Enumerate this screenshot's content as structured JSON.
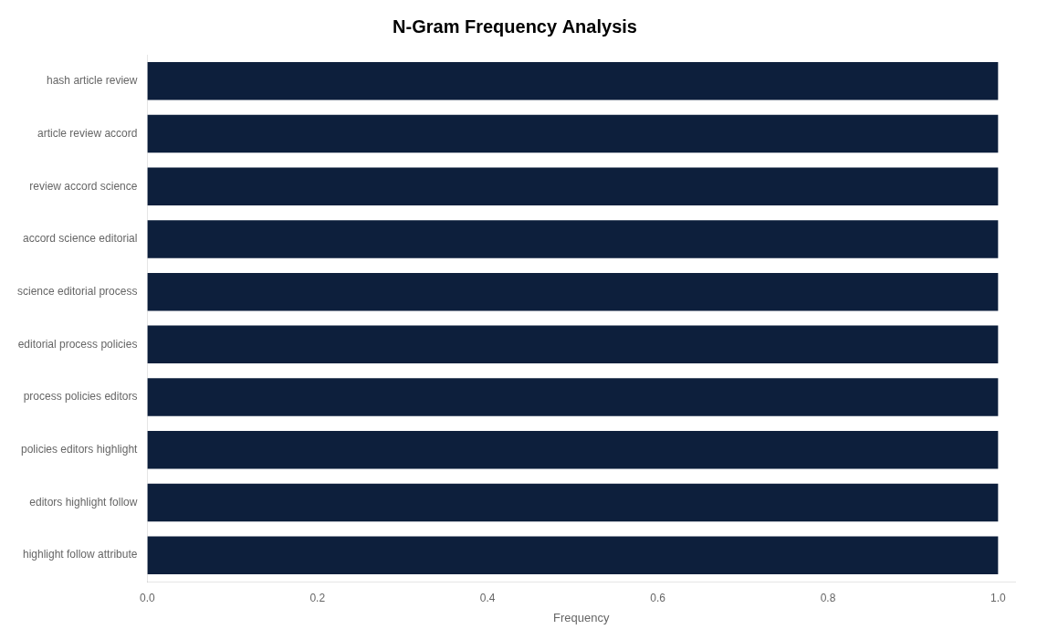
{
  "chart_data": {
    "type": "bar",
    "orientation": "horizontal",
    "title": "N-Gram Frequency Analysis",
    "xlabel": "Frequency",
    "categories": [
      "highlight follow attribute",
      "editors highlight follow",
      "policies editors highlight",
      "process policies editors",
      "editorial process policies",
      "science editorial process",
      "accord science editorial",
      "review accord science",
      "article review accord",
      "hash article review"
    ],
    "values": [
      1.0,
      1.0,
      1.0,
      1.0,
      1.0,
      1.0,
      1.0,
      1.0,
      1.0,
      1.0
    ],
    "color": "#0d1f3c",
    "xlim": [
      0.0,
      1.02
    ],
    "xticks": [
      {
        "value": 0.0,
        "label": "0.0"
      },
      {
        "value": 0.2,
        "label": "0.2"
      },
      {
        "value": 0.4,
        "label": "0.4"
      },
      {
        "value": 0.6,
        "label": "0.6"
      },
      {
        "value": 0.8,
        "label": "0.8"
      },
      {
        "value": 1.0,
        "label": "1.0"
      }
    ],
    "grid": false
  }
}
